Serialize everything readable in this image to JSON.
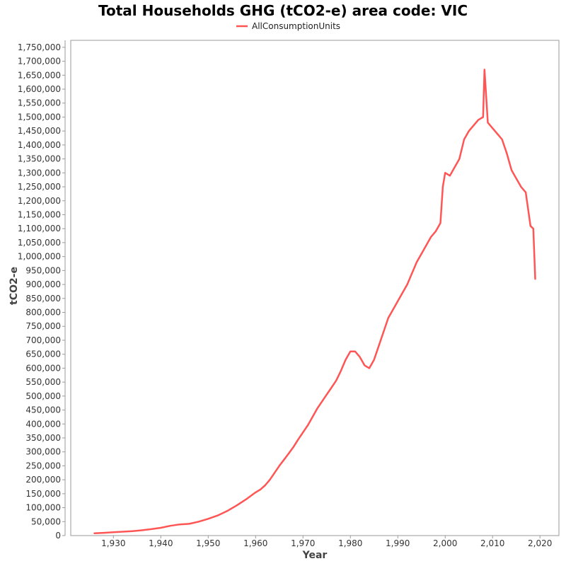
{
  "chart_data": {
    "type": "line",
    "title": "Total Households GHG (tCO2-e) area code: VIC",
    "xlabel": "Year",
    "ylabel": "tCO2-e",
    "xlim": [
      1921,
      2024
    ],
    "ylim": [
      0,
      1775000
    ],
    "x_ticks": [
      "1,930",
      "1,940",
      "1,950",
      "1,960",
      "1,970",
      "1,980",
      "1,990",
      "2,000",
      "2,010",
      "2,020"
    ],
    "y_ticks": [
      "0",
      "50,000",
      "100,000",
      "150,000",
      "200,000",
      "250,000",
      "300,000",
      "350,000",
      "400,000",
      "450,000",
      "500,000",
      "550,000",
      "600,000",
      "650,000",
      "700,000",
      "750,000",
      "800,000",
      "850,000",
      "900,000",
      "950,000",
      "1,000,000",
      "1,050,000",
      "1,100,000",
      "1,150,000",
      "1,200,000",
      "1,250,000",
      "1,300,000",
      "1,350,000",
      "1,400,000",
      "1,450,000",
      "1,500,000",
      "1,550,000",
      "1,600,000",
      "1,650,000",
      "1,700,000",
      "1,750,000"
    ],
    "legend_position": "top-center",
    "grid": false,
    "series": [
      {
        "name": "AllConsumptionUnits",
        "color": "#ff5555",
        "x": [
          1926,
          1928,
          1930,
          1932,
          1934,
          1936,
          1938,
          1940,
          1942,
          1944,
          1946,
          1948,
          1950,
          1952,
          1954,
          1956,
          1958,
          1960,
          1961,
          1962,
          1963,
          1964,
          1965,
          1966,
          1967,
          1968,
          1969,
          1970,
          1971,
          1972,
          1973,
          1974,
          1975,
          1976,
          1977,
          1978,
          1979,
          1980,
          1981,
          1982,
          1983,
          1984,
          1985,
          1986,
          1987,
          1988,
          1989,
          1990,
          1991,
          1992,
          1993,
          1994,
          1995,
          1996,
          1997,
          1998,
          1999,
          1999.5,
          2000,
          2001,
          2002,
          2003,
          2004,
          2005,
          2006,
          2007,
          2008,
          2008.3,
          2009,
          2010,
          2011,
          2012,
          2013,
          2014,
          2015,
          2016,
          2017,
          2018,
          2018.6,
          2019
        ],
        "y": [
          8000,
          10000,
          12000,
          14000,
          16000,
          19000,
          23000,
          28000,
          35000,
          40000,
          42000,
          50000,
          60000,
          72000,
          88000,
          108000,
          130000,
          155000,
          165000,
          180000,
          200000,
          225000,
          250000,
          272000,
          295000,
          318000,
          345000,
          370000,
          395000,
          425000,
          455000,
          480000,
          505000,
          530000,
          555000,
          590000,
          630000,
          660000,
          660000,
          640000,
          610000,
          600000,
          630000,
          680000,
          730000,
          780000,
          810000,
          840000,
          870000,
          900000,
          940000,
          980000,
          1010000,
          1040000,
          1070000,
          1090000,
          1120000,
          1250000,
          1300000,
          1290000,
          1320000,
          1350000,
          1420000,
          1450000,
          1470000,
          1490000,
          1500000,
          1670000,
          1480000,
          1460000,
          1440000,
          1420000,
          1370000,
          1310000,
          1280000,
          1250000,
          1230000,
          1110000,
          1100000,
          920000
        ]
      }
    ]
  }
}
